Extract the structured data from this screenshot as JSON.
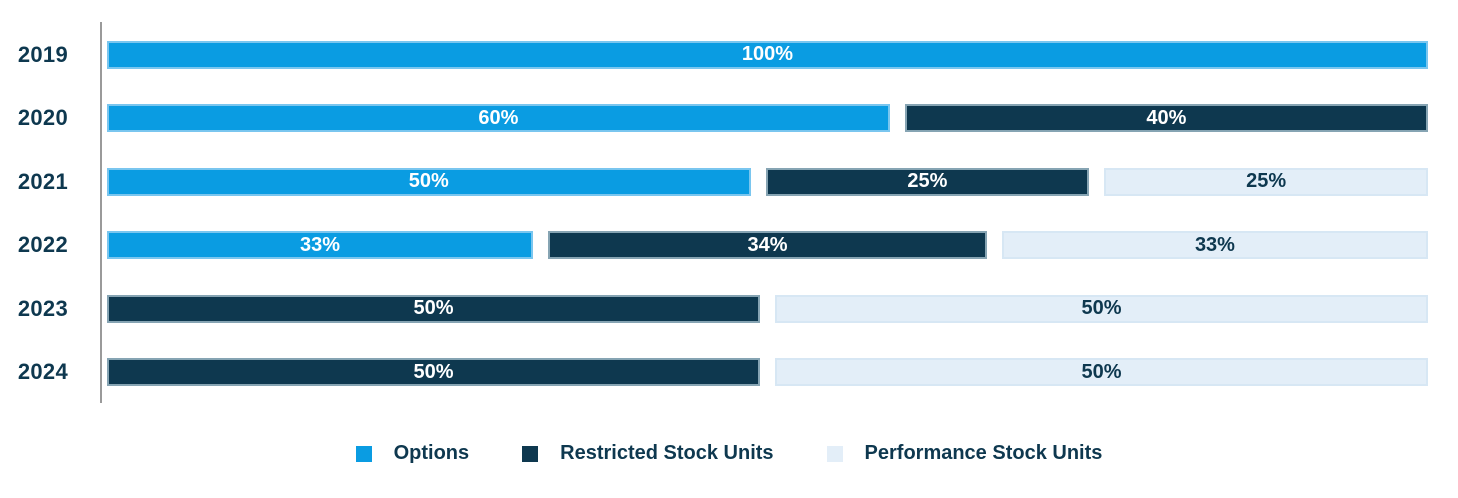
{
  "chart_data": {
    "type": "bar",
    "orientation": "horizontal",
    "stacked": true,
    "title": "",
    "xlabel": "",
    "ylabel": "",
    "unit": "%",
    "xlim": [
      0,
      100
    ],
    "grid": false,
    "legend_position": "bottom",
    "data_labels": "inside-center",
    "axis_color": "#9a9a9a",
    "category_label_color": "#0e384f",
    "categories": [
      "2019",
      "2020",
      "2021",
      "2022",
      "2023",
      "2024"
    ],
    "series": [
      {
        "name": "Options",
        "color": "#0a9ce2",
        "border_color": "#7ac6ef",
        "label_color": "#ffffff",
        "values": [
          100,
          60,
          50,
          33,
          null,
          null
        ]
      },
      {
        "name": "Restricted Stock Units",
        "color": "#0e384f",
        "border_color": "#86a4b3",
        "label_color": "#ffffff",
        "values": [
          null,
          40,
          25,
          34,
          50,
          50
        ]
      },
      {
        "name": "Performance Stock Units",
        "color": "#e3eef8",
        "border_color": "#d7e7f4",
        "label_color": "#0e384f",
        "values": [
          null,
          null,
          25,
          33,
          50,
          50
        ]
      }
    ]
  }
}
